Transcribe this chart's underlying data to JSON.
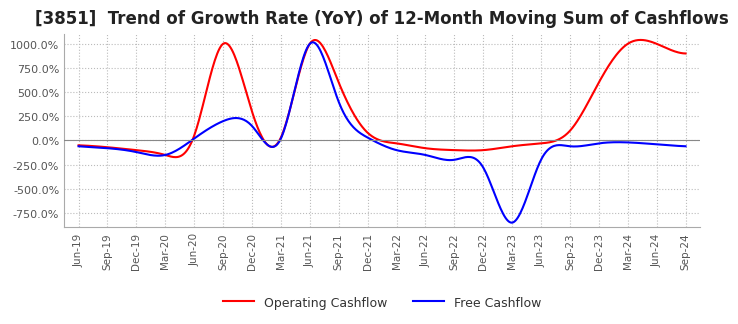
{
  "title": "[3851]  Trend of Growth Rate (YoY) of 12-Month Moving Sum of Cashflows",
  "title_fontsize": 12,
  "ylim": [
    -900,
    1100
  ],
  "yticks": [
    -750,
    -500,
    -250,
    0,
    250,
    500,
    750,
    1000
  ],
  "ytick_labels": [
    "-750.0%",
    "-500.0%",
    "-250.0%",
    "0.0%",
    "250.0%",
    "500.0%",
    "750.0%",
    "1000.0%"
  ],
  "background_color": "#ffffff",
  "plot_bg_color": "#ffffff",
  "grid_color": "#bbbbbb",
  "operating_color": "#ff0000",
  "free_color": "#0000ff",
  "x_labels": [
    "Jun-19",
    "Sep-19",
    "Dec-19",
    "Mar-20",
    "Jun-20",
    "Sep-20",
    "Dec-20",
    "Mar-21",
    "Jun-21",
    "Sep-21",
    "Dec-21",
    "Mar-22",
    "Jun-22",
    "Sep-22",
    "Dec-22",
    "Mar-23",
    "Jun-23",
    "Sep-23",
    "Dec-23",
    "Mar-24",
    "Jun-24",
    "Sep-24"
  ]
}
